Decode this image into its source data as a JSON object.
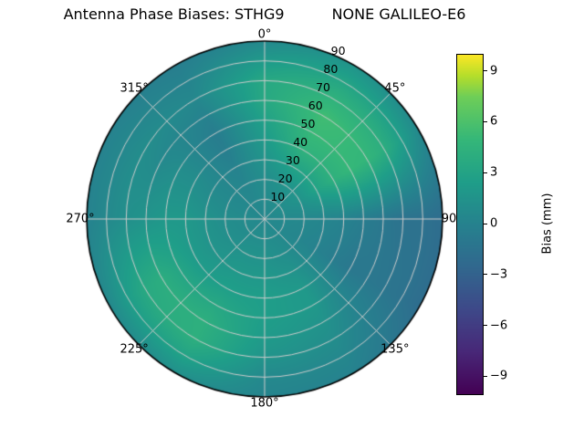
{
  "title": {
    "left": "Antenna Phase Biases: STHG9",
    "right": "NONE GALILEO-E6"
  },
  "chart_data": {
    "type": "heatmap",
    "projection": "polar",
    "theta_zero_location": "top",
    "theta_direction": "clockwise",
    "angular_ticks": [
      {
        "angle_deg": 0,
        "label": "0°"
      },
      {
        "angle_deg": 45,
        "label": "45°"
      },
      {
        "angle_deg": 90,
        "label": "90"
      },
      {
        "angle_deg": 135,
        "label": "135°"
      },
      {
        "angle_deg": 180,
        "label": "180°"
      },
      {
        "angle_deg": 225,
        "label": "225°"
      },
      {
        "angle_deg": 270,
        "label": "270°"
      },
      {
        "angle_deg": 315,
        "label": "315°"
      }
    ],
    "radial_ticks": [
      {
        "zenith_deg": 10,
        "label": "10"
      },
      {
        "zenith_deg": 20,
        "label": "20"
      },
      {
        "zenith_deg": 30,
        "label": "30"
      },
      {
        "zenith_deg": 40,
        "label": "40"
      },
      {
        "zenith_deg": 50,
        "label": "50"
      },
      {
        "zenith_deg": 60,
        "label": "60"
      },
      {
        "zenith_deg": 70,
        "label": "70"
      },
      {
        "zenith_deg": 80,
        "label": "80"
      },
      {
        "zenith_deg": 90,
        "label": "90"
      }
    ],
    "radial_tick_azimuth_deg": 22.5,
    "zenith_max_deg": 90,
    "grid_lines": {
      "visible": true,
      "color": "#cccccc",
      "spoke_step_deg": 45,
      "ring_step_deg": 10
    },
    "colorbar": {
      "label": "Bias (mm)",
      "vmin": -10,
      "vmax": 10,
      "ticks": [
        {
          "value": 9,
          "label": "9"
        },
        {
          "value": 6,
          "label": "6"
        },
        {
          "value": 3,
          "label": "3"
        },
        {
          "value": 0,
          "label": "0"
        },
        {
          "value": -3,
          "label": "−3"
        },
        {
          "value": -6,
          "label": "−6"
        },
        {
          "value": -9,
          "label": "−9"
        }
      ],
      "colormap": "viridis",
      "colormap_stops": [
        {
          "t": 0,
          "color": "#440154"
        },
        {
          "t": 0.125,
          "color": "#482878"
        },
        {
          "t": 0.25,
          "color": "#3e4989"
        },
        {
          "t": 0.375,
          "color": "#31688e"
        },
        {
          "t": 0.5,
          "color": "#26828e"
        },
        {
          "t": 0.625,
          "color": "#1f9e89"
        },
        {
          "t": 0.75,
          "color": "#35b779"
        },
        {
          "t": 0.875,
          "color": "#6ece58"
        },
        {
          "t": 0.9375,
          "color": "#b5de2b"
        },
        {
          "t": 1,
          "color": "#fde725"
        }
      ]
    },
    "grid": {
      "azimuth_deg": [
        0,
        30,
        60,
        90,
        120,
        150,
        180,
        210,
        240,
        270,
        300,
        330
      ],
      "zenith_deg": [
        0,
        10,
        20,
        30,
        40,
        50,
        60,
        70,
        80,
        90
      ],
      "bias_mm": [
        [
          0.5,
          0.5,
          0.5,
          0.5,
          0.5,
          0.5,
          0.5,
          0.5,
          0.5,
          0.5,
          0.5,
          0.5
        ],
        [
          0.8,
          1.0,
          1.0,
          0.6,
          0.5,
          0.8,
          1.0,
          1.0,
          0.8,
          0.8,
          0.6,
          0.5
        ],
        [
          1.0,
          1.6,
          1.6,
          0.5,
          0.3,
          1.0,
          1.5,
          1.5,
          1.2,
          1.0,
          0.6,
          0.3
        ],
        [
          1.6,
          3.0,
          3.0,
          0.3,
          0.0,
          1.5,
          2.0,
          2.0,
          1.6,
          1.5,
          0.7,
          0.0
        ],
        [
          2.2,
          4.5,
          4.3,
          0.0,
          -0.5,
          2.0,
          2.5,
          2.6,
          2.2,
          2.0,
          1.0,
          -0.4
        ],
        [
          2.8,
          5.2,
          5.0,
          -0.5,
          -1.0,
          2.0,
          2.5,
          3.5,
          3.2,
          2.0,
          1.0,
          -0.5
        ],
        [
          3.5,
          5.5,
          4.8,
          -1.0,
          -1.0,
          1.5,
          2.2,
          4.2,
          4.0,
          1.6,
          0.6,
          0.0
        ],
        [
          3.5,
          4.5,
          4.0,
          -1.5,
          -1.2,
          1.0,
          1.6,
          4.2,
          3.6,
          1.2,
          1.0,
          0.5
        ],
        [
          2.2,
          3.2,
          2.5,
          -1.6,
          -1.5,
          0.5,
          0.6,
          3.0,
          2.4,
          0.6,
          0.5,
          0.1
        ],
        [
          0.6,
          1.6,
          0.6,
          -2.0,
          -2.0,
          0.0,
          0.2,
          1.2,
          0.6,
          0.0,
          0.0,
          -0.4
        ]
      ]
    }
  }
}
